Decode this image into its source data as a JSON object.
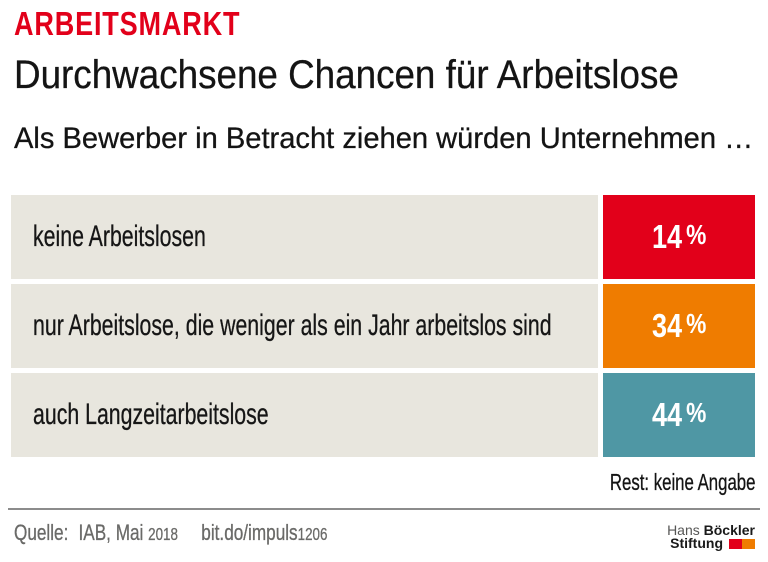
{
  "kicker": "ARBEITSMARKT",
  "title": "Durchwachsene Chancen für Arbeitslose",
  "subtitle": "Als Bewerber in Betracht ziehen würden Unternehmen …",
  "note": "Rest: keine Angabe",
  "footer": {
    "source_label": "Quelle:",
    "source": "IAB, Mai 2018",
    "link": "bit.do/impuls1206",
    "logo_line1_light": "Hans",
    "logo_line1_bold": "Böckler",
    "logo_line2_bold": "Stiftung"
  },
  "colors": {
    "accent_red": "#e2001a",
    "accent_orange": "#ef7c00",
    "accent_teal": "#4f97a4",
    "row_background": "#e8e6de"
  },
  "chart_data": {
    "type": "bar",
    "title": "Durchwachsene Chancen für Arbeitslose",
    "subtitle": "Als Bewerber in Betracht ziehen würden Unternehmen …",
    "categories": [
      "keine Arbeitslosen",
      "nur Arbeitslose, die weniger als ein Jahr arbeitslos sind",
      "auch Langzeitarbeitslose"
    ],
    "values": [
      14,
      34,
      44
    ],
    "unit": "%",
    "bar_colors": [
      "#e2001a",
      "#ef7c00",
      "#4f97a4"
    ],
    "note": "Rest: keine Angabe",
    "legend": false,
    "grid": false
  }
}
